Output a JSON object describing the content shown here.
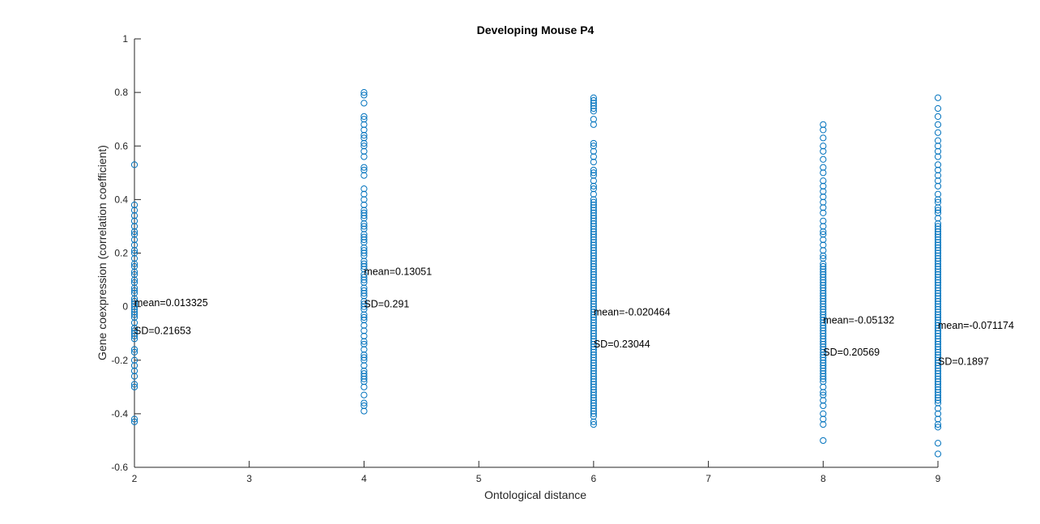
{
  "chart_data": {
    "type": "scatter",
    "title": "Developing Mouse P4",
    "xlabel": "Ontological distance",
    "ylabel": "Gene coexpression (correlation coefficient)",
    "xlim": [
      2,
      9
    ],
    "ylim": [
      -0.6,
      1
    ],
    "xticks": [
      2,
      3,
      4,
      5,
      6,
      7,
      8,
      9
    ],
    "yticks": [
      -0.6,
      -0.4,
      -0.2,
      0,
      0.2,
      0.4,
      0.6,
      0.8,
      1
    ],
    "xtick_labels": [
      "2",
      "3",
      "4",
      "5",
      "6",
      "7",
      "8",
      "9"
    ],
    "ytick_labels": [
      "-0.6",
      "-0.4",
      "-0.2",
      "0",
      "0.2",
      "0.4",
      "0.6",
      "0.8",
      "1"
    ],
    "marker_color": "#0072BD",
    "grid": false,
    "series": [
      {
        "x": 2,
        "y": [
          0.53,
          0.38,
          0.36,
          0.34,
          0.32,
          0.3,
          0.28,
          0.27,
          0.25,
          0.23,
          0.21,
          0.2,
          0.18,
          0.16,
          0.15,
          0.13,
          0.12,
          0.1,
          0.09,
          0.07,
          0.06,
          0.05,
          0.03,
          0.02,
          0.01,
          0.0,
          -0.01,
          -0.02,
          -0.03,
          -0.04,
          -0.06,
          -0.08,
          -0.09,
          -0.1,
          -0.11,
          -0.12,
          -0.16,
          -0.17,
          -0.2,
          -0.22,
          -0.24,
          -0.26,
          -0.29,
          -0.3,
          -0.42,
          -0.43
        ]
      },
      {
        "x": 4,
        "y": [
          0.8,
          0.79,
          0.76,
          0.71,
          0.7,
          0.68,
          0.66,
          0.64,
          0.63,
          0.61,
          0.6,
          0.58,
          0.56,
          0.52,
          0.51,
          0.49,
          0.44,
          0.42,
          0.4,
          0.38,
          0.36,
          0.35,
          0.34,
          0.33,
          0.31,
          0.3,
          0.29,
          0.27,
          0.26,
          0.25,
          0.24,
          0.22,
          0.21,
          0.2,
          0.19,
          0.17,
          0.16,
          0.15,
          0.14,
          0.12,
          0.11,
          0.1,
          0.09,
          0.07,
          0.06,
          0.05,
          0.04,
          0.02,
          0.01,
          0.0,
          -0.01,
          -0.03,
          -0.04,
          -0.05,
          -0.07,
          -0.09,
          -0.11,
          -0.13,
          -0.14,
          -0.16,
          -0.18,
          -0.19,
          -0.2,
          -0.22,
          -0.24,
          -0.25,
          -0.26,
          -0.27,
          -0.28,
          -0.3,
          -0.33,
          -0.36,
          -0.37,
          -0.39
        ]
      },
      {
        "x": 6,
        "y": [
          0.78,
          0.77,
          0.76,
          0.75,
          0.74,
          0.73,
          0.7,
          0.68,
          0.61,
          0.6,
          0.58,
          0.56,
          0.54,
          0.51,
          0.5,
          0.49,
          0.47,
          0.45,
          0.44,
          0.42,
          0.4,
          0.39,
          0.38,
          0.37,
          0.36,
          0.35,
          0.34,
          0.33,
          0.32,
          0.31,
          0.3,
          0.29,
          0.28,
          0.27,
          0.26,
          0.25,
          0.24,
          0.23,
          0.22,
          0.21,
          0.2,
          0.19,
          0.18,
          0.17,
          0.16,
          0.15,
          0.14,
          0.13,
          0.12,
          0.11,
          0.1,
          0.09,
          0.08,
          0.07,
          0.06,
          0.05,
          0.04,
          0.03,
          0.02,
          0.01,
          0.0,
          -0.01,
          -0.02,
          -0.03,
          -0.04,
          -0.05,
          -0.06,
          -0.07,
          -0.08,
          -0.09,
          -0.1,
          -0.11,
          -0.12,
          -0.13,
          -0.14,
          -0.15,
          -0.16,
          -0.17,
          -0.18,
          -0.19,
          -0.2,
          -0.21,
          -0.22,
          -0.23,
          -0.24,
          -0.25,
          -0.26,
          -0.27,
          -0.28,
          -0.29,
          -0.3,
          -0.31,
          -0.32,
          -0.33,
          -0.34,
          -0.35,
          -0.36,
          -0.37,
          -0.38,
          -0.39,
          -0.4,
          -0.41,
          -0.43,
          -0.44
        ]
      },
      {
        "x": 8,
        "y": [
          0.68,
          0.66,
          0.63,
          0.6,
          0.58,
          0.55,
          0.52,
          0.5,
          0.47,
          0.45,
          0.43,
          0.41,
          0.39,
          0.37,
          0.35,
          0.32,
          0.3,
          0.28,
          0.27,
          0.25,
          0.23,
          0.21,
          0.19,
          0.18,
          0.16,
          0.15,
          0.14,
          0.13,
          0.12,
          0.11,
          0.1,
          0.09,
          0.08,
          0.07,
          0.06,
          0.05,
          0.04,
          0.03,
          0.02,
          0.01,
          0.0,
          -0.01,
          -0.02,
          -0.03,
          -0.04,
          -0.05,
          -0.06,
          -0.07,
          -0.08,
          -0.09,
          -0.1,
          -0.11,
          -0.12,
          -0.13,
          -0.14,
          -0.15,
          -0.16,
          -0.17,
          -0.18,
          -0.19,
          -0.2,
          -0.21,
          -0.22,
          -0.23,
          -0.24,
          -0.25,
          -0.26,
          -0.27,
          -0.28,
          -0.3,
          -0.32,
          -0.33,
          -0.35,
          -0.37,
          -0.4,
          -0.42,
          -0.44,
          -0.5
        ]
      },
      {
        "x": 9,
        "y": [
          0.78,
          0.74,
          0.71,
          0.68,
          0.65,
          0.62,
          0.6,
          0.58,
          0.56,
          0.53,
          0.51,
          0.49,
          0.47,
          0.45,
          0.42,
          0.4,
          0.39,
          0.37,
          0.36,
          0.35,
          0.33,
          0.31,
          0.3,
          0.29,
          0.28,
          0.27,
          0.26,
          0.25,
          0.24,
          0.23,
          0.22,
          0.21,
          0.2,
          0.19,
          0.18,
          0.17,
          0.16,
          0.15,
          0.14,
          0.13,
          0.12,
          0.11,
          0.1,
          0.09,
          0.08,
          0.07,
          0.06,
          0.05,
          0.04,
          0.03,
          0.02,
          0.01,
          0.0,
          -0.01,
          -0.02,
          -0.03,
          -0.04,
          -0.05,
          -0.06,
          -0.07,
          -0.08,
          -0.09,
          -0.1,
          -0.11,
          -0.12,
          -0.13,
          -0.14,
          -0.15,
          -0.16,
          -0.17,
          -0.18,
          -0.19,
          -0.2,
          -0.21,
          -0.22,
          -0.23,
          -0.24,
          -0.25,
          -0.26,
          -0.27,
          -0.28,
          -0.29,
          -0.3,
          -0.31,
          -0.32,
          -0.33,
          -0.34,
          -0.35,
          -0.36,
          -0.38,
          -0.4,
          -0.42,
          -0.44,
          -0.45,
          -0.51,
          -0.55
        ]
      }
    ],
    "annotations": [
      {
        "x": 2,
        "y": 0.013325,
        "text": "mean=0.013325"
      },
      {
        "x": 2,
        "y": -0.09,
        "text": "SD=0.21653"
      },
      {
        "x": 4,
        "y": 0.13051,
        "text": "mean=0.13051"
      },
      {
        "x": 4,
        "y": 0.01,
        "text": "SD=0.291"
      },
      {
        "x": 6,
        "y": -0.020464,
        "text": "mean=-0.020464"
      },
      {
        "x": 6,
        "y": -0.14,
        "text": "SD=0.23044"
      },
      {
        "x": 8,
        "y": -0.05132,
        "text": "mean=-0.05132"
      },
      {
        "x": 8,
        "y": -0.17,
        "text": "SD=0.20569"
      },
      {
        "x": 9,
        "y": -0.071174,
        "text": "mean=-0.071174"
      },
      {
        "x": 9,
        "y": -0.205,
        "text": "SD=0.1897"
      }
    ]
  }
}
